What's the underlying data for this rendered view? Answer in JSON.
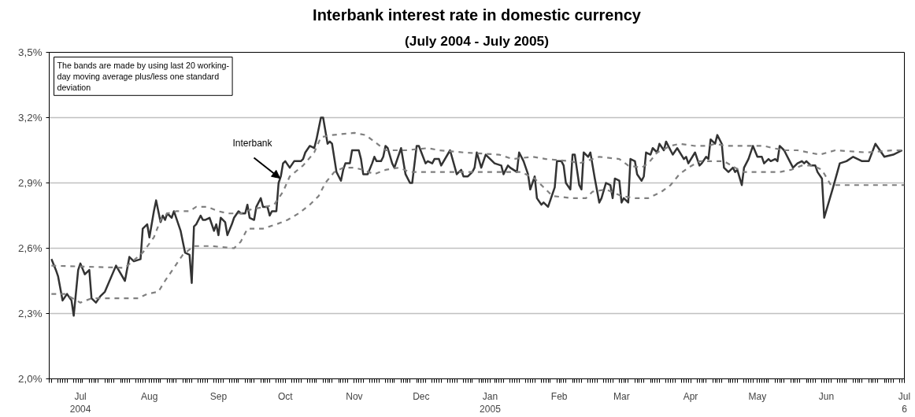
{
  "chart_data": {
    "type": "line",
    "title": "Interbank interest rate in domestic currency",
    "subtitle": "(July 2004 - July 2005)",
    "annotations": [
      "The bands are made by using last 20 working-day moving average plus/less one standard deviation"
    ],
    "xlim": [
      "2004-06-17",
      "2005-07-06"
    ],
    "xticks": [
      {
        "value": "2004-07-01",
        "label": "Jul\n2004"
      },
      {
        "value": "2004-08-01",
        "label": "Aug"
      },
      {
        "value": "2004-09-01",
        "label": "Sep"
      },
      {
        "value": "2004-10-01",
        "label": "Oct"
      },
      {
        "value": "2004-11-01",
        "label": "Nov"
      },
      {
        "value": "2004-12-01",
        "label": "Dec"
      },
      {
        "value": "2005-01-01",
        "label": "Jan\n2005"
      },
      {
        "value": "2005-02-01",
        "label": "Feb"
      },
      {
        "value": "2005-03-01",
        "label": "Mar"
      },
      {
        "value": "2005-04-01",
        "label": "Apr"
      },
      {
        "value": "2005-05-01",
        "label": "May"
      },
      {
        "value": "2005-06-01",
        "label": "Jun"
      },
      {
        "value": "2005-07-06",
        "label": "Jul\n6"
      }
    ],
    "ylim": [
      2.0,
      3.5
    ],
    "yticks": [
      {
        "value": 2.0,
        "label": "2,0%"
      },
      {
        "value": 2.3,
        "label": "2,3%"
      },
      {
        "value": 2.6,
        "label": "2,6%"
      },
      {
        "value": 2.9,
        "label": "2,9%"
      },
      {
        "value": 3.2,
        "label": "3,2%"
      },
      {
        "value": 3.5,
        "label": "3,5%"
      }
    ],
    "grid": "y",
    "series": [
      {
        "name": "Interbank",
        "color": "#333333",
        "line_style": "solid",
        "x": [
          "2004-06-18",
          "2004-06-20",
          "2004-06-21",
          "2004-06-23",
          "2004-06-25",
          "2004-06-27",
          "2004-06-28",
          "2004-06-30",
          "2004-07-01",
          "2004-07-03",
          "2004-07-05",
          "2004-07-06",
          "2004-07-08",
          "2004-07-10",
          "2004-07-12",
          "2004-07-17",
          "2004-07-21",
          "2004-07-23",
          "2004-07-25",
          "2004-07-28",
          "2004-07-29",
          "2004-07-31",
          "2004-08-01",
          "2004-08-03",
          "2004-08-04",
          "2004-08-06",
          "2004-08-07",
          "2004-08-08",
          "2004-08-09",
          "2004-08-11",
          "2004-08-12",
          "2004-08-15",
          "2004-08-16",
          "2004-08-17",
          "2004-08-19",
          "2004-08-20",
          "2004-08-21",
          "2004-08-22",
          "2004-08-24",
          "2004-08-25",
          "2004-08-26",
          "2004-08-28",
          "2004-08-30",
          "2004-08-31",
          "2004-09-01",
          "2004-09-02",
          "2004-09-04",
          "2004-09-05",
          "2004-09-07",
          "2004-09-08",
          "2004-09-10",
          "2004-09-11",
          "2004-09-13",
          "2004-09-14",
          "2004-09-15",
          "2004-09-17",
          "2004-09-18",
          "2004-09-20",
          "2004-09-21",
          "2004-09-23",
          "2004-09-24",
          "2004-09-25",
          "2004-09-27",
          "2004-09-28",
          "2004-09-29",
          "2004-09-30",
          "2004-10-01",
          "2004-10-03",
          "2004-10-05",
          "2004-10-08",
          "2004-10-09",
          "2004-10-10",
          "2004-10-12",
          "2004-10-14",
          "2004-10-15",
          "2004-10-17",
          "2004-10-18",
          "2004-10-20",
          "2004-10-21",
          "2004-10-22",
          "2004-10-24",
          "2004-10-26",
          "2004-10-27",
          "2004-10-28",
          "2004-10-30",
          "2004-10-31",
          "2004-11-03",
          "2004-11-04",
          "2004-11-05",
          "2004-11-07",
          "2004-11-09",
          "2004-11-10",
          "2004-11-11",
          "2004-11-13",
          "2004-11-14",
          "2004-11-15",
          "2004-11-16",
          "2004-11-18",
          "2004-11-19",
          "2004-11-22",
          "2004-11-24",
          "2004-11-26",
          "2004-11-27",
          "2004-11-29",
          "2004-11-30",
          "2004-12-03",
          "2004-12-04",
          "2004-12-06",
          "2004-12-07",
          "2004-12-09",
          "2004-12-10",
          "2004-12-14",
          "2004-12-17",
          "2004-12-19",
          "2004-12-20",
          "2004-12-22",
          "2004-12-24",
          "2004-12-25",
          "2004-12-26",
          "2004-12-28",
          "2004-12-30",
          "2004-12-31",
          "2005-01-03",
          "2005-01-06",
          "2005-01-07",
          "2005-01-09",
          "2005-01-10",
          "2005-01-13",
          "2005-01-14",
          "2005-01-16",
          "2005-01-18",
          "2005-01-19",
          "2005-01-21",
          "2005-01-22",
          "2005-01-24",
          "2005-01-25",
          "2005-01-27",
          "2005-01-30",
          "2005-01-31",
          "2005-02-02",
          "2005-02-03",
          "2005-02-04",
          "2005-02-06",
          "2005-02-07",
          "2005-02-08",
          "2005-02-10",
          "2005-02-11",
          "2005-02-12",
          "2005-02-14",
          "2005-02-15",
          "2005-02-16",
          "2005-02-17",
          "2005-02-19",
          "2005-02-20",
          "2005-02-22",
          "2005-02-24",
          "2005-02-25",
          "2005-02-26",
          "2005-02-28",
          "2005-03-01",
          "2005-03-02",
          "2005-03-04",
          "2005-03-05",
          "2005-03-07",
          "2005-03-08",
          "2005-03-10",
          "2005-03-11",
          "2005-03-12",
          "2005-03-14",
          "2005-03-15",
          "2005-03-17",
          "2005-03-18",
          "2005-03-20",
          "2005-03-21",
          "2005-03-24",
          "2005-03-26",
          "2005-03-29",
          "2005-03-30",
          "2005-03-31",
          "2005-04-03",
          "2005-04-05",
          "2005-04-06",
          "2005-04-08",
          "2005-04-09",
          "2005-04-10",
          "2005-04-12",
          "2005-04-13",
          "2005-04-15",
          "2005-04-16",
          "2005-04-18",
          "2005-04-20",
          "2005-04-21",
          "2005-04-22",
          "2005-04-24",
          "2005-04-25",
          "2005-04-27",
          "2005-04-29",
          "2005-05-01",
          "2005-05-03",
          "2005-05-04",
          "2005-05-06",
          "2005-05-07",
          "2005-05-09",
          "2005-05-10",
          "2005-05-11",
          "2005-05-13",
          "2005-05-15",
          "2005-05-17",
          "2005-05-19",
          "2005-05-21",
          "2005-05-22",
          "2005-05-23",
          "2005-05-25",
          "2005-05-27",
          "2005-05-28",
          "2005-05-30",
          "2005-05-31",
          "2005-06-04",
          "2005-06-07",
          "2005-06-10",
          "2005-06-13",
          "2005-06-17",
          "2005-06-20",
          "2005-06-23",
          "2005-06-27",
          "2005-07-01",
          "2005-07-05"
        ],
        "values": [
          2.55,
          2.5,
          2.47,
          2.36,
          2.39,
          2.36,
          2.29,
          2.5,
          2.53,
          2.48,
          2.5,
          2.37,
          2.35,
          2.38,
          2.4,
          2.52,
          2.45,
          2.56,
          2.54,
          2.55,
          2.69,
          2.71,
          2.65,
          2.77,
          2.82,
          2.72,
          2.75,
          2.73,
          2.76,
          2.74,
          2.77,
          2.68,
          2.63,
          2.58,
          2.57,
          2.44,
          2.7,
          2.71,
          2.75,
          2.73,
          2.73,
          2.74,
          2.68,
          2.71,
          2.66,
          2.74,
          2.72,
          2.66,
          2.71,
          2.74,
          2.77,
          2.76,
          2.76,
          2.8,
          2.74,
          2.73,
          2.79,
          2.83,
          2.79,
          2.79,
          2.75,
          2.77,
          2.77,
          2.9,
          2.93,
          2.99,
          3.0,
          2.97,
          3.0,
          3.0,
          3.01,
          3.04,
          3.07,
          3.06,
          3.1,
          3.2,
          3.2,
          3.08,
          3.09,
          3.08,
          2.95,
          2.91,
          2.96,
          2.99,
          2.99,
          3.05,
          3.05,
          3.01,
          2.94,
          2.94,
          2.99,
          3.02,
          3.0,
          3.0,
          3.02,
          3.07,
          3.06,
          2.99,
          2.97,
          3.06,
          2.94,
          2.9,
          2.9,
          3.07,
          3.07,
          2.99,
          3.0,
          2.99,
          3.01,
          3.01,
          2.98,
          3.05,
          2.94,
          2.96,
          2.93,
          2.93,
          2.95,
          2.97,
          3.04,
          2.97,
          3.03,
          3.02,
          2.99,
          2.98,
          2.94,
          2.98,
          2.97,
          2.95,
          3.04,
          3.0,
          2.94,
          2.87,
          2.93,
          2.83,
          2.8,
          2.81,
          2.79,
          2.88,
          3.0,
          3.0,
          2.98,
          2.9,
          2.87,
          3.03,
          3.03,
          2.89,
          2.87,
          3.04,
          3.02,
          3.04,
          2.98,
          2.92,
          2.81,
          2.83,
          2.9,
          2.89,
          2.83,
          2.92,
          2.91,
          2.81,
          2.83,
          2.81,
          3.01,
          3.0,
          2.94,
          2.91,
          2.93,
          3.04,
          3.03,
          3.06,
          3.04,
          3.08,
          3.05,
          3.09,
          3.03,
          3.06,
          3.01,
          3.02,
          2.99,
          3.04,
          2.98,
          2.99,
          3.02,
          3.01,
          3.1,
          3.08,
          3.12,
          3.08,
          2.97,
          2.95,
          2.97,
          2.95,
          2.96,
          2.89,
          2.97,
          3.01,
          3.07,
          3.02,
          3.02,
          2.99,
          3.01,
          3.0,
          3.01,
          3.0,
          3.07,
          3.05,
          3.01,
          2.97,
          2.99,
          3.0,
          2.99,
          3.0,
          2.98,
          2.98,
          2.95,
          2.92,
          2.74,
          2.88,
          2.99,
          3.0,
          3.02,
          3.0,
          3.0,
          3.08,
          3.02,
          3.03,
          3.05
        ]
      },
      {
        "color": "#808080",
        "line_style": "dashed",
        "x": [
          "2004-06-18",
          "2004-07-21",
          "2004-07-29",
          "2004-08-03",
          "2004-08-06",
          "2004-08-09",
          "2004-08-13",
          "2004-08-19",
          "2004-08-22",
          "2004-08-27",
          "2004-09-01",
          "2004-09-05",
          "2004-09-11",
          "2004-09-16",
          "2004-09-22",
          "2004-09-26",
          "2004-09-30",
          "2004-10-03",
          "2004-10-09",
          "2004-10-14",
          "2004-10-17",
          "2004-10-22",
          "2004-11-01",
          "2004-11-06",
          "2004-11-10",
          "2004-11-15",
          "2004-11-24",
          "2004-12-04",
          "2004-12-09",
          "2004-12-20",
          "2005-01-05",
          "2005-01-11",
          "2005-01-20",
          "2005-01-26",
          "2005-02-06",
          "2005-02-10",
          "2005-02-19",
          "2005-02-28",
          "2005-03-04",
          "2005-03-10",
          "2005-03-13",
          "2005-03-17",
          "2005-03-23",
          "2005-03-27",
          "2005-04-03",
          "2005-04-09",
          "2005-04-12",
          "2005-04-17",
          "2005-04-27",
          "2005-05-04",
          "2005-05-08",
          "2005-05-13",
          "2005-05-19",
          "2005-05-24",
          "2005-05-29",
          "2005-06-05",
          "2005-06-19",
          "2005-07-01",
          "2005-07-06"
        ],
        "values": [
          2.52,
          2.51,
          2.58,
          2.65,
          2.73,
          2.76,
          2.77,
          2.77,
          2.79,
          2.79,
          2.77,
          2.76,
          2.76,
          2.78,
          2.79,
          2.8,
          2.86,
          2.93,
          2.98,
          3.04,
          3.11,
          3.12,
          3.13,
          3.12,
          3.09,
          3.05,
          3.05,
          3.06,
          3.05,
          3.04,
          3.03,
          3.01,
          3.02,
          3.01,
          3.0,
          2.99,
          3.02,
          3.01,
          2.98,
          2.97,
          2.99,
          3.04,
          3.07,
          3.08,
          3.07,
          3.07,
          3.08,
          3.07,
          3.07,
          3.07,
          3.06,
          3.05,
          3.05,
          3.04,
          3.03,
          3.05,
          3.04,
          3.05,
          3.05
        ]
      },
      {
        "color": "#808080",
        "line_style": "dashed",
        "x": [
          "2004-06-18",
          "2004-06-24",
          "2004-07-01",
          "2004-07-06",
          "2004-07-27",
          "2004-07-31",
          "2004-08-05",
          "2004-08-08",
          "2004-08-12",
          "2004-08-16",
          "2004-08-21",
          "2004-08-29",
          "2004-09-08",
          "2004-09-11",
          "2004-09-14",
          "2004-09-21",
          "2004-09-27",
          "2004-10-02",
          "2004-10-07",
          "2004-10-12",
          "2004-10-16",
          "2004-10-19",
          "2004-10-23",
          "2004-10-27",
          "2004-11-01",
          "2004-11-05",
          "2004-11-10",
          "2004-11-15",
          "2004-11-21",
          "2004-11-26",
          "2004-12-09",
          "2004-12-26",
          "2005-01-15",
          "2005-01-21",
          "2005-01-25",
          "2005-01-29",
          "2005-02-07",
          "2005-02-13",
          "2005-02-16",
          "2005-02-22",
          "2005-03-01",
          "2005-03-07",
          "2005-03-13",
          "2005-03-19",
          "2005-03-23",
          "2005-03-27",
          "2005-03-31",
          "2005-04-05",
          "2005-04-10",
          "2005-04-16",
          "2005-04-21",
          "2005-04-25",
          "2005-05-01",
          "2005-05-11",
          "2005-05-16",
          "2005-05-21",
          "2005-05-26",
          "2005-05-30",
          "2005-06-03",
          "2005-06-16",
          "2005-07-06"
        ],
        "values": [
          2.39,
          2.39,
          2.35,
          2.37,
          2.37,
          2.39,
          2.4,
          2.45,
          2.51,
          2.57,
          2.61,
          2.61,
          2.6,
          2.63,
          2.69,
          2.69,
          2.71,
          2.73,
          2.76,
          2.8,
          2.84,
          2.9,
          2.95,
          2.97,
          2.97,
          2.96,
          2.94,
          2.96,
          2.97,
          2.95,
          2.95,
          2.95,
          2.95,
          2.92,
          2.88,
          2.84,
          2.83,
          2.83,
          2.86,
          2.87,
          2.84,
          2.83,
          2.83,
          2.86,
          2.89,
          2.94,
          2.97,
          3.0,
          3.0,
          3.0,
          2.97,
          2.95,
          2.95,
          2.95,
          2.96,
          2.98,
          2.98,
          2.96,
          2.89,
          2.89,
          2.89
        ]
      }
    ]
  }
}
